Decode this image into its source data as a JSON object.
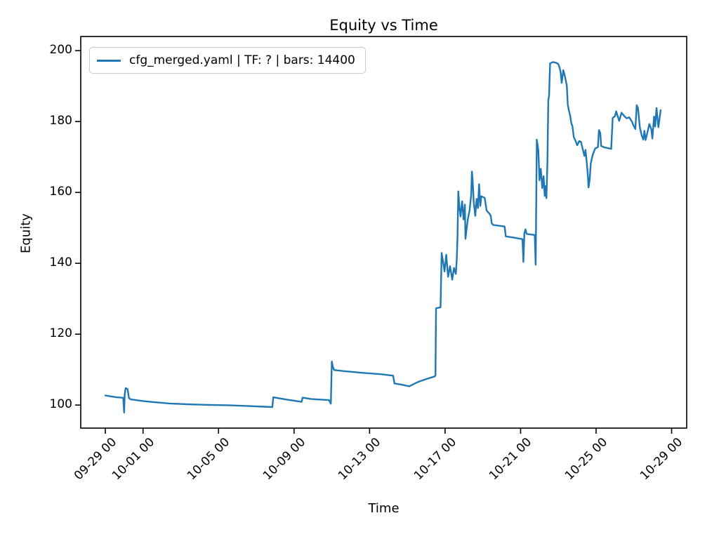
{
  "chart_data": {
    "type": "line",
    "title": "Equity vs Time",
    "xlabel": "Time",
    "ylabel": "Equity",
    "grid": false,
    "legend": {
      "position": "upper left",
      "label": "cfg_merged.yaml | TF: ? | bars: 14400"
    },
    "x_axis": {
      "tick_labels": [
        "09-29 00",
        "10-01 00",
        "10-05 00",
        "10-09 00",
        "10-13 00",
        "10-17 00",
        "10-21 00",
        "10-25 00",
        "10-29 00"
      ],
      "tick_days": [
        0,
        2,
        6,
        10,
        14,
        18,
        22,
        26,
        30
      ],
      "xlim_days": [
        -1.3,
        30.8
      ]
    },
    "y_axis": {
      "ticks": [
        100,
        120,
        140,
        160,
        180,
        200
      ],
      "ylim": [
        93.5,
        204
      ]
    },
    "series": [
      {
        "name": "cfg_merged.yaml | TF: ? | bars: 14400",
        "color": "#1f77b4",
        "points": [
          [
            0.0,
            102.7
          ],
          [
            0.3,
            102.45
          ],
          [
            0.6,
            102.2
          ],
          [
            0.95,
            102.05
          ],
          [
            1.0,
            97.9
          ],
          [
            1.03,
            103.0
          ],
          [
            1.08,
            104.8
          ],
          [
            1.18,
            104.5
          ],
          [
            1.25,
            102.0
          ],
          [
            1.35,
            101.6
          ],
          [
            2.0,
            101.15
          ],
          [
            2.6,
            100.8
          ],
          [
            3.4,
            100.45
          ],
          [
            4.5,
            100.2
          ],
          [
            5.5,
            100.05
          ],
          [
            6.5,
            99.95
          ],
          [
            7.5,
            99.75
          ],
          [
            8.85,
            99.45
          ],
          [
            8.9,
            102.2
          ],
          [
            9.6,
            101.55
          ],
          [
            10.4,
            100.9
          ],
          [
            10.45,
            102.1
          ],
          [
            10.9,
            101.7
          ],
          [
            11.85,
            101.4
          ],
          [
            11.95,
            100.4
          ],
          [
            12.0,
            112.3
          ],
          [
            12.05,
            110.9
          ],
          [
            12.12,
            109.9
          ],
          [
            12.6,
            109.6
          ],
          [
            13.6,
            109.1
          ],
          [
            14.6,
            108.7
          ],
          [
            15.25,
            108.3
          ],
          [
            15.32,
            106.1
          ],
          [
            15.7,
            105.75
          ],
          [
            16.1,
            105.3
          ],
          [
            16.55,
            106.5
          ],
          [
            17.1,
            107.5
          ],
          [
            17.45,
            108.1
          ],
          [
            17.49,
            108.35
          ],
          [
            17.52,
            127.3
          ],
          [
            17.76,
            127.6
          ],
          [
            17.79,
            135.2
          ],
          [
            17.82,
            142.9
          ],
          [
            17.9,
            140.2
          ],
          [
            17.97,
            137.7
          ],
          [
            18.06,
            142.4
          ],
          [
            18.16,
            136.2
          ],
          [
            18.26,
            139.2
          ],
          [
            18.38,
            135.4
          ],
          [
            18.47,
            138.7
          ],
          [
            18.57,
            137.0
          ],
          [
            18.62,
            141.0
          ],
          [
            18.66,
            147.6
          ],
          [
            18.7,
            160.3
          ],
          [
            18.76,
            155.8
          ],
          [
            18.82,
            153.2
          ],
          [
            18.9,
            157.5
          ],
          [
            18.98,
            152.4
          ],
          [
            19.05,
            156.6
          ],
          [
            19.08,
            146.9
          ],
          [
            19.2,
            152.2
          ],
          [
            19.3,
            155.0
          ],
          [
            19.38,
            159.2
          ],
          [
            19.42,
            165.9
          ],
          [
            19.46,
            163.6
          ],
          [
            19.52,
            157.2
          ],
          [
            19.6,
            153.4
          ],
          [
            19.67,
            158.2
          ],
          [
            19.74,
            155.6
          ],
          [
            19.8,
            162.3
          ],
          [
            19.87,
            156.2
          ],
          [
            19.92,
            158.9
          ],
          [
            20.1,
            158.5
          ],
          [
            20.2,
            154.9
          ],
          [
            20.35,
            154.0
          ],
          [
            20.42,
            153.4
          ],
          [
            20.47,
            151.3
          ],
          [
            20.55,
            150.8
          ],
          [
            21.15,
            150.4
          ],
          [
            21.22,
            147.6
          ],
          [
            21.7,
            147.2
          ],
          [
            22.1,
            146.8
          ],
          [
            22.15,
            140.4
          ],
          [
            22.2,
            148.5
          ],
          [
            22.26,
            149.6
          ],
          [
            22.32,
            148.3
          ],
          [
            22.75,
            148.0
          ],
          [
            22.8,
            139.6
          ],
          [
            22.86,
            174.9
          ],
          [
            22.94,
            172.0
          ],
          [
            23.0,
            163.4
          ],
          [
            23.07,
            166.7
          ],
          [
            23.15,
            161.2
          ],
          [
            23.22,
            164.6
          ],
          [
            23.28,
            159.0
          ],
          [
            23.33,
            161.8
          ],
          [
            23.37,
            158.4
          ],
          [
            23.42,
            168.3
          ],
          [
            23.47,
            186.1
          ],
          [
            23.51,
            187.2
          ],
          [
            23.56,
            196.4
          ],
          [
            23.7,
            196.8
          ],
          [
            23.88,
            196.6
          ],
          [
            24.0,
            196.2
          ],
          [
            24.08,
            195.0
          ],
          [
            24.12,
            194.0
          ],
          [
            24.18,
            190.9
          ],
          [
            24.26,
            194.5
          ],
          [
            24.32,
            193.4
          ],
          [
            24.4,
            191.5
          ],
          [
            24.45,
            190.0
          ],
          [
            24.5,
            184.9
          ],
          [
            24.56,
            183.1
          ],
          [
            24.63,
            181.6
          ],
          [
            24.68,
            179.7
          ],
          [
            24.75,
            178.6
          ],
          [
            24.82,
            175.6
          ],
          [
            24.9,
            174.7
          ],
          [
            25.0,
            173.3
          ],
          [
            25.1,
            174.5
          ],
          [
            25.2,
            174.3
          ],
          [
            25.3,
            172.1
          ],
          [
            25.38,
            170.3
          ],
          [
            25.44,
            172.0
          ],
          [
            25.5,
            168.7
          ],
          [
            25.56,
            165.2
          ],
          [
            25.6,
            161.4
          ],
          [
            25.66,
            163.6
          ],
          [
            25.72,
            168.2
          ],
          [
            25.82,
            170.6
          ],
          [
            25.95,
            172.4
          ],
          [
            26.1,
            172.8
          ],
          [
            26.15,
            177.6
          ],
          [
            26.22,
            176.8
          ],
          [
            26.27,
            173.1
          ],
          [
            26.45,
            172.7
          ],
          [
            26.8,
            172.3
          ],
          [
            26.88,
            181.0
          ],
          [
            27.0,
            181.5
          ],
          [
            27.06,
            182.9
          ],
          [
            27.12,
            181.9
          ],
          [
            27.22,
            180.2
          ],
          [
            27.35,
            182.5
          ],
          [
            27.5,
            181.5
          ],
          [
            27.62,
            180.9
          ],
          [
            27.75,
            181.2
          ],
          [
            27.9,
            180.0
          ],
          [
            27.97,
            179.0
          ],
          [
            28.08,
            177.9
          ],
          [
            28.15,
            184.6
          ],
          [
            28.22,
            183.8
          ],
          [
            28.32,
            178.3
          ],
          [
            28.42,
            176.0
          ],
          [
            28.5,
            174.9
          ],
          [
            28.56,
            177.4
          ],
          [
            28.62,
            174.8
          ],
          [
            28.72,
            176.9
          ],
          [
            28.82,
            179.3
          ],
          [
            28.92,
            177.9
          ],
          [
            28.98,
            175.2
          ],
          [
            29.07,
            181.4
          ],
          [
            29.13,
            178.6
          ],
          [
            29.2,
            183.8
          ],
          [
            29.3,
            178.4
          ],
          [
            29.42,
            183.2
          ]
        ]
      }
    ]
  }
}
